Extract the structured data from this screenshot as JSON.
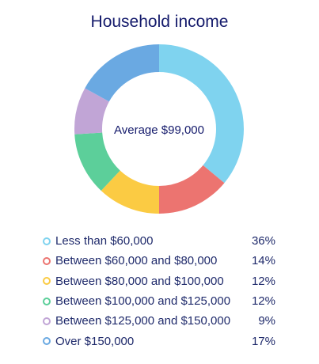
{
  "chart_data": {
    "type": "pie",
    "title": "Household income",
    "center_label": "Average $99,000",
    "categories": [
      "Less than $60,000",
      "Between $60,000 and $80,000",
      "Between $80,000 and $100,000",
      "Between $100,000 and $125,000",
      "Between $125,000 and $150,000",
      "Over $150,000"
    ],
    "values": [
      36,
      14,
      12,
      12,
      9,
      17
    ],
    "value_labels": [
      "36%",
      "14%",
      "12%",
      "12%",
      "9%",
      "17%"
    ],
    "colors": [
      "#7fd3ef",
      "#ec7470",
      "#fbcb43",
      "#5ccf9a",
      "#c1a5d6",
      "#6aa9e2"
    ],
    "legend": "bottom",
    "style": "donut"
  }
}
